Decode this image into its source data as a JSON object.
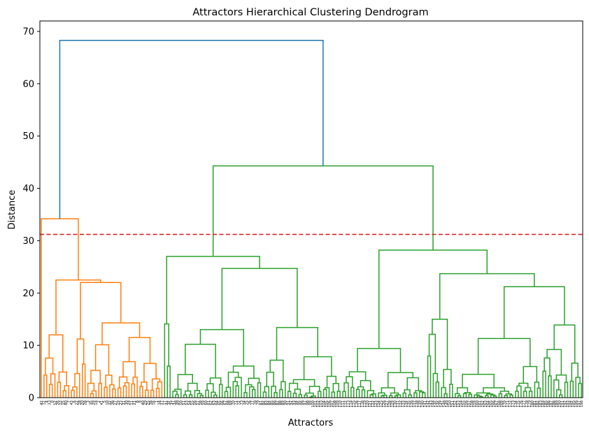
{
  "chart_data": {
    "type": "dendrogram",
    "title": "Attractors Hierarchical Clustering Dendrogram",
    "xlabel": "Attractors",
    "ylabel": "Distance",
    "ylim": [
      0,
      72
    ],
    "y_ticks": [
      0,
      10,
      20,
      30,
      40,
      50,
      60,
      70
    ],
    "threshold": {
      "value": 31.2,
      "color": "#d62728",
      "style": "dashed"
    },
    "colors": {
      "above_threshold": "#1f77b4",
      "cluster_1": "#ff7f0e",
      "cluster_2": "#2ca02c"
    },
    "leaf_labels": [
      "42",
      "12",
      "4",
      "33",
      "0",
      "52",
      "26",
      "13",
      "15",
      "80",
      "7",
      "43",
      "6",
      "22",
      "18",
      "20",
      "28",
      "3",
      "35",
      "39",
      "14",
      "2",
      "41",
      "5",
      "10",
      "32",
      "36",
      "27",
      "19",
      "23",
      "31",
      "30",
      "24",
      "11",
      "21",
      "8",
      "9",
      "40",
      "29",
      "25",
      "38",
      "16",
      "1",
      "34",
      "37",
      "17",
      "44",
      "45",
      "47",
      "48",
      "49",
      "50",
      "51",
      "53",
      "54",
      "55",
      "56",
      "57",
      "58",
      "59",
      "60",
      "61",
      "62",
      "63",
      "64",
      "65",
      "66",
      "67",
      "68",
      "69",
      "70",
      "71",
      "72",
      "73",
      "74",
      "75",
      "76",
      "77",
      "78",
      "79",
      "81",
      "82",
      "83",
      "84",
      "85",
      "86",
      "87",
      "88",
      "89",
      "90",
      "91",
      "92",
      "93",
      "94",
      "95",
      "96",
      "97",
      "98",
      "99",
      "100",
      "101",
      "102",
      "103",
      "104",
      "105",
      "106",
      "107",
      "108",
      "109",
      "110",
      "111",
      "112",
      "113",
      "114",
      "115",
      "116",
      "117",
      "118",
      "119",
      "120",
      "121",
      "122",
      "123",
      "124",
      "125",
      "126",
      "127",
      "128",
      "129",
      "130",
      "131",
      "132",
      "133",
      "134",
      "135",
      "136",
      "137",
      "138",
      "139",
      "140",
      "141",
      "142",
      "143",
      "144",
      "145",
      "146",
      "147",
      "148",
      "149",
      "150",
      "151",
      "152",
      "153",
      "154",
      "155",
      "156",
      "157",
      "158",
      "159",
      "160",
      "161",
      "162",
      "163",
      "164",
      "165",
      "166",
      "167",
      "168",
      "169",
      "170",
      "171",
      "172",
      "173",
      "174",
      "175",
      "176",
      "177",
      "178",
      "179",
      "180",
      "181",
      "182",
      "183",
      "184",
      "185",
      "186",
      "187",
      "188",
      "189",
      "190",
      "191",
      "192",
      "193",
      "194",
      "195",
      "196",
      "197",
      "198"
    ],
    "root_merge": {
      "height": 68.3,
      "left_cluster_height": 34.2,
      "right_cluster_height": 44.3
    },
    "orange_cluster": {
      "leaves": 45,
      "top_merge": 34.2,
      "sub_merges": [
        22.5,
        22.0,
        14.3,
        11.5,
        11.2,
        12.0,
        10.1,
        9.0,
        8.7
      ]
    },
    "green_cluster": {
      "leaves": 154,
      "top_merge": 44.3,
      "left_branch_merge": 27.0,
      "right_branch_merge": 28.2,
      "sub_merges": [
        24.7,
        23.7,
        21.2,
        14.1,
        13.4,
        13.0,
        15.0,
        13.9,
        11.3,
        9.4,
        10.4
      ]
    }
  }
}
